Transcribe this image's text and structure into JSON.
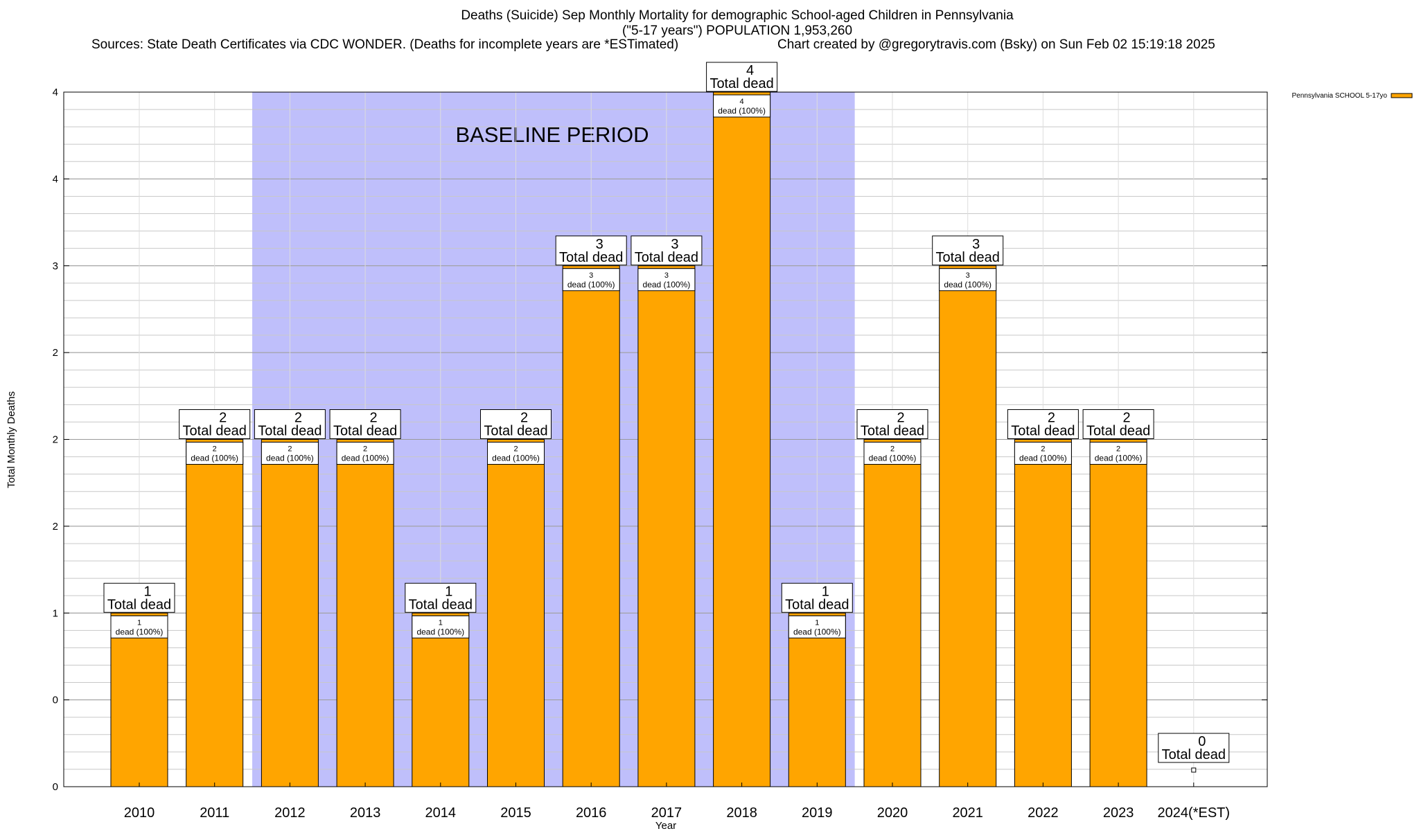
{
  "header": {
    "title": "Deaths (Suicide) Sep Monthly Mortality for demographic School-aged Children in Pennsylvania",
    "subtitle": "(\"5-17 years\") POPULATION 1,953,260",
    "sources": "Sources: State Death Certificates via CDC WONDER. (Deaths for incomplete years are *ESTimated)",
    "credit": "Chart created by @gregorytravis.com (Bsky) on Sun Feb 02 15:19:18 2025"
  },
  "chart_data": {
    "type": "bar",
    "title": "Deaths (Suicide) Sep Monthly Mortality for demographic School-aged Children in Pennsylvania",
    "xlabel": "Year",
    "ylabel": "Total Monthly Deaths",
    "categories": [
      "2010",
      "2011",
      "2012",
      "2013",
      "2014",
      "2015",
      "2016",
      "2017",
      "2018",
      "2019",
      "2020",
      "2021",
      "2022",
      "2023",
      "2024(*EST)"
    ],
    "series": [
      {
        "name": "Pennsylvania SCHOOL 5-17yo",
        "color": "#ffa500",
        "values": [
          1,
          2,
          2,
          2,
          1,
          2,
          3,
          3,
          4,
          1,
          2,
          3,
          2,
          2,
          0
        ]
      }
    ],
    "ylim": [
      0,
      4
    ],
    "yticks": [
      0,
      0.5,
      1,
      1.5,
      2,
      2.5,
      3,
      3.5,
      4
    ],
    "ytick_labels": [
      "0",
      "0",
      "1",
      "2",
      "2",
      "2",
      "3",
      "4",
      "4"
    ],
    "total_label_suffix": "Total dead",
    "inner_label_suffix": "dead (100%)",
    "baseline_period": {
      "label": "BASELINE PERIOD",
      "from": "2012",
      "to": "2019",
      "color": "#bfbffb"
    },
    "legend_position": "top-right",
    "grid": true
  }
}
